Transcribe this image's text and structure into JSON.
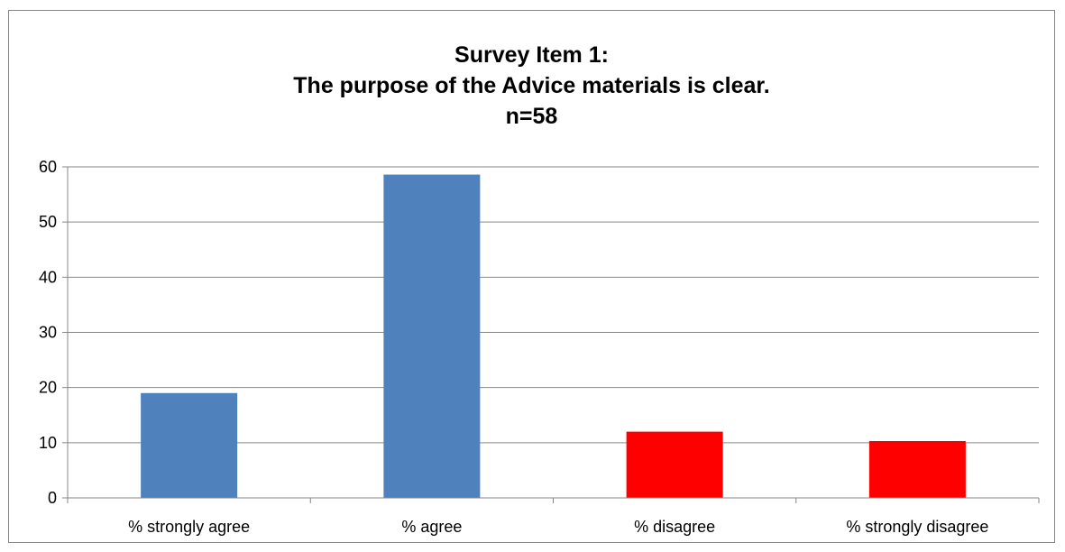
{
  "chart_data": {
    "type": "bar",
    "title_lines": [
      "Survey Item 1:",
      "The purpose of the Advice materials is clear.",
      "n=58"
    ],
    "categories": [
      "% strongly agree",
      "% agree",
      "% disagree",
      "% strongly disagree"
    ],
    "values": [
      19,
      58.6,
      12,
      10.3
    ],
    "bar_colors": [
      "#4f81bd",
      "#4f81bd",
      "#ff0000",
      "#ff0000"
    ],
    "ylim": [
      0,
      60
    ],
    "yticks": [
      0,
      10,
      20,
      30,
      40,
      50,
      60
    ],
    "xlabel": "",
    "ylabel": "",
    "grid": true,
    "legend": "none"
  }
}
